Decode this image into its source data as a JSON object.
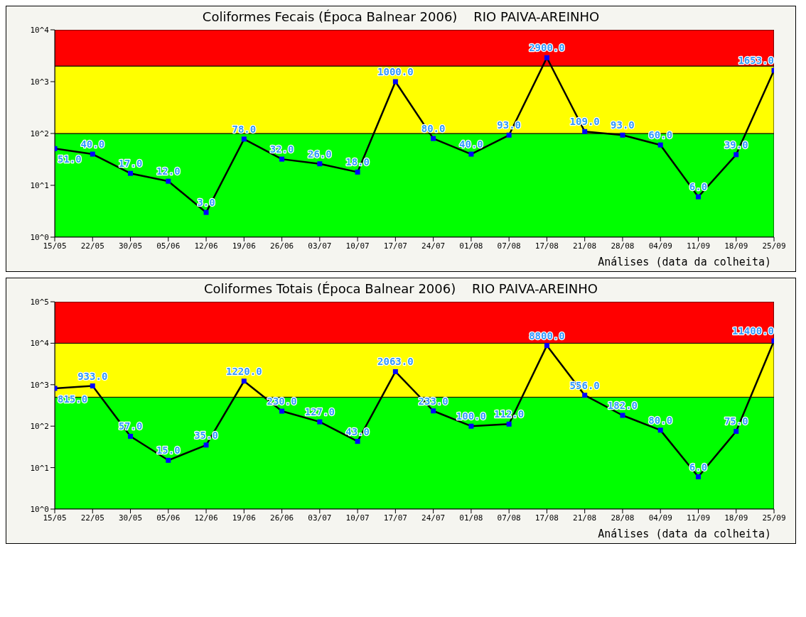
{
  "chart_data": [
    {
      "type": "line",
      "title": "Coliformes Fecais (Época Balnear 2006)    RIO PAIVA-AREINHO",
      "xlabel": "Análises (data da colheita)",
      "categories": [
        "15/05",
        "22/05",
        "30/05",
        "05/06",
        "12/06",
        "19/06",
        "26/06",
        "03/07",
        "10/07",
        "17/07",
        "24/07",
        "01/08",
        "07/08",
        "17/08",
        "21/08",
        "28/08",
        "04/09",
        "11/09",
        "18/09",
        "25/09"
      ],
      "series": [
        {
          "color": "#000000",
          "values": [
            51,
            40,
            17,
            12,
            3,
            78,
            32,
            26,
            18,
            1000,
            80,
            40,
            93,
            2900,
            109,
            93,
            60,
            6,
            39,
            1653
          ],
          "value_labels": [
            "51.0",
            "40.0",
            "17.0",
            "12.0",
            "3.0",
            "78.0",
            "32.0",
            "26.0",
            "18.0",
            "1000.0",
            "80.0",
            "40.0",
            "93.0",
            "2900.0",
            "109.0",
            "93.0",
            "60.0",
            "6.0",
            "39.0",
            "1653.0"
          ]
        }
      ],
      "bands": [
        {
          "axis": "y",
          "from": 1,
          "to": 100,
          "color": "#00ff00"
        },
        {
          "axis": "y",
          "from": 100,
          "to": 2000,
          "color": "#ffff00"
        },
        {
          "axis": "y",
          "from": 2000,
          "to": 10000,
          "color": "#ff0000"
        }
      ],
      "log": true,
      "ylim": [
        1,
        10000
      ],
      "yticks": [
        {
          "value": 1,
          "label": "10^0"
        },
        {
          "value": 10,
          "label": "10^1"
        },
        {
          "value": 100,
          "label": "10^2"
        },
        {
          "value": 1000,
          "label": "10^3"
        },
        {
          "value": 10000,
          "label": "10^4"
        }
      ],
      "grid": false,
      "legend": false,
      "marker": "square",
      "line_style": "solid"
    },
    {
      "type": "line",
      "title": "Coliformes Totais (Época Balnear 2006)    RIO PAIVA-AREINHO",
      "xlabel": "Análises (data da colheita)",
      "categories": [
        "15/05",
        "22/05",
        "30/05",
        "05/06",
        "12/06",
        "19/06",
        "26/06",
        "03/07",
        "10/07",
        "17/07",
        "24/07",
        "01/08",
        "07/08",
        "17/08",
        "21/08",
        "28/08",
        "04/09",
        "11/09",
        "18/09",
        "25/09"
      ],
      "series": [
        {
          "color": "#000000",
          "values": [
            815,
            933,
            57,
            15,
            35,
            1220,
            230,
            127,
            43,
            2063,
            233,
            100,
            112,
            8800,
            556,
            182,
            80,
            6,
            75,
            11400
          ],
          "value_labels": [
            "815.0",
            "933.0",
            "57.0",
            "15.0",
            "35.0",
            "1220.0",
            "230.0",
            "127.0",
            "43.0",
            "2063.0",
            "233.0",
            "100.0",
            "112.0",
            "8800.0",
            "556.0",
            "182.0",
            "80.0",
            "6.0",
            "75.0",
            "11400.0"
          ]
        }
      ],
      "bands": [
        {
          "axis": "y",
          "from": 1,
          "to": 500,
          "color": "#00ff00"
        },
        {
          "axis": "y",
          "from": 500,
          "to": 10000,
          "color": "#ffff00"
        },
        {
          "axis": "y",
          "from": 10000,
          "to": 100000,
          "color": "#ff0000"
        }
      ],
      "log": true,
      "ylim": [
        1,
        100000
      ],
      "yticks": [
        {
          "value": 1,
          "label": "10^0"
        },
        {
          "value": 10,
          "label": "10^1"
        },
        {
          "value": 100,
          "label": "10^2"
        },
        {
          "value": 1000,
          "label": "10^3"
        },
        {
          "value": 10000,
          "label": "10^4"
        },
        {
          "value": 100000,
          "label": "10^5"
        }
      ],
      "grid": false,
      "legend": false,
      "marker": "square",
      "line_style": "solid"
    }
  ]
}
